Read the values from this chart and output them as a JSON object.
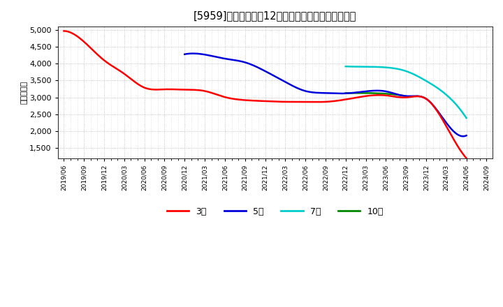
{
  "title": "[5959]　当期純利益12か月移動合計の平均値の推移",
  "ylabel": "（百万円）",
  "background_color": "#ffffff",
  "plot_bg_color": "#ffffff",
  "grid_color": "#999999",
  "ylim": [
    1200,
    5100
  ],
  "yticks": [
    1500,
    2000,
    2500,
    3000,
    3500,
    4000,
    4500,
    5000
  ],
  "legend_labels": [
    "3年",
    "5年",
    "7年",
    "10年"
  ],
  "legend_colors": [
    "#ff0000",
    "#0000dd",
    "#00cccc",
    "#008800"
  ],
  "series": {
    "3year": {
      "color": "#ff0000",
      "dates": [
        "2019/06",
        "2019/09",
        "2019/12",
        "2020/03",
        "2020/06",
        "2020/09",
        "2020/12",
        "2021/03",
        "2021/06",
        "2021/09",
        "2021/12",
        "2022/03",
        "2022/06",
        "2022/09",
        "2022/12",
        "2023/03",
        "2023/06",
        "2023/09",
        "2023/12",
        "2024/03",
        "2024/06"
      ],
      "values": [
        4970,
        4650,
        4100,
        3700,
        3290,
        3240,
        3230,
        3190,
        3010,
        2920,
        2890,
        2870,
        2870,
        2870,
        2940,
        3040,
        3060,
        3000,
        2960,
        2150,
        1200
      ]
    },
    "5year": {
      "color": "#0000dd",
      "dates": [
        "2020/12",
        "2021/03",
        "2021/06",
        "2021/09",
        "2021/12",
        "2022/03",
        "2022/06",
        "2022/09",
        "2022/12",
        "2023/03",
        "2023/06",
        "2023/09",
        "2023/12",
        "2024/03",
        "2024/06"
      ],
      "values": [
        4280,
        4270,
        4150,
        4040,
        3780,
        3460,
        3190,
        3130,
        3120,
        3180,
        3180,
        3040,
        2960,
        2250,
        1870
      ]
    },
    "7year": {
      "color": "#00cccc",
      "dates": [
        "2022/12",
        "2023/03",
        "2023/06",
        "2023/09",
        "2023/12",
        "2024/03",
        "2024/06"
      ],
      "values": [
        3920,
        3910,
        3890,
        3780,
        3490,
        3080,
        2390
      ]
    },
    "10year": {
      "color": "#008800",
      "dates": [
        "2022/12",
        "2023/03",
        "2023/06",
        "2023/09"
      ],
      "values": [
        3130,
        3130,
        3110,
        3040
      ]
    }
  },
  "x_tick_labels": [
    "2019/06",
    "2019/09",
    "2019/12",
    "2020/03",
    "2020/06",
    "2020/09",
    "2020/12",
    "2021/03",
    "2021/06",
    "2021/09",
    "2021/12",
    "2022/03",
    "2022/06",
    "2022/09",
    "2022/12",
    "2023/03",
    "2023/06",
    "2023/09",
    "2023/12",
    "2024/03",
    "2024/06",
    "2024/09"
  ]
}
